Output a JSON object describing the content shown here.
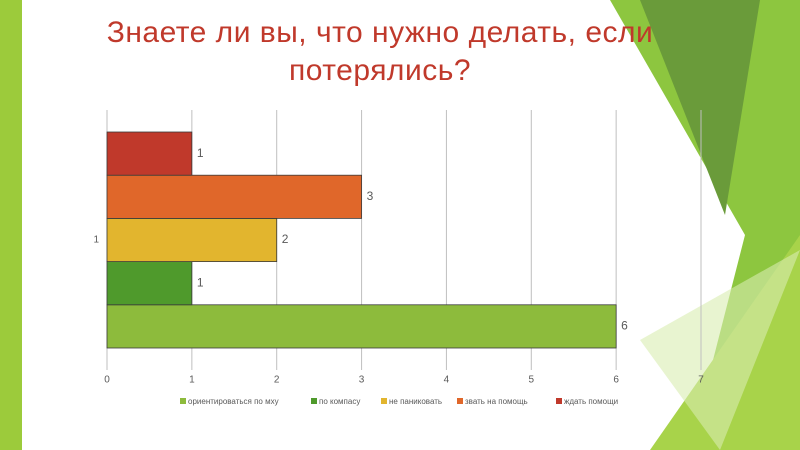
{
  "chart_data": {
    "type": "hbar",
    "title": "Знаете ли вы, что нужно делать, если потерялись?",
    "categories": [
      "1"
    ],
    "series": [
      {
        "name": "ориентироваться по мху",
        "color": "#8dbb3c",
        "values": [
          6
        ]
      },
      {
        "name": "по компасу",
        "color": "#4f9a2c",
        "values": [
          1
        ]
      },
      {
        "name": "не паниковать",
        "color": "#e2b52e",
        "values": [
          2
        ]
      },
      {
        "name": "звать на помощь",
        "color": "#e0672a",
        "values": [
          3
        ]
      },
      {
        "name": "ждать помощи",
        "color": "#c0392b",
        "values": [
          1
        ]
      }
    ],
    "xlim": [
      0,
      7
    ],
    "xticks": [
      0,
      1,
      2,
      3,
      4,
      5,
      6,
      7
    ],
    "grid": true,
    "legend": "bottom"
  }
}
